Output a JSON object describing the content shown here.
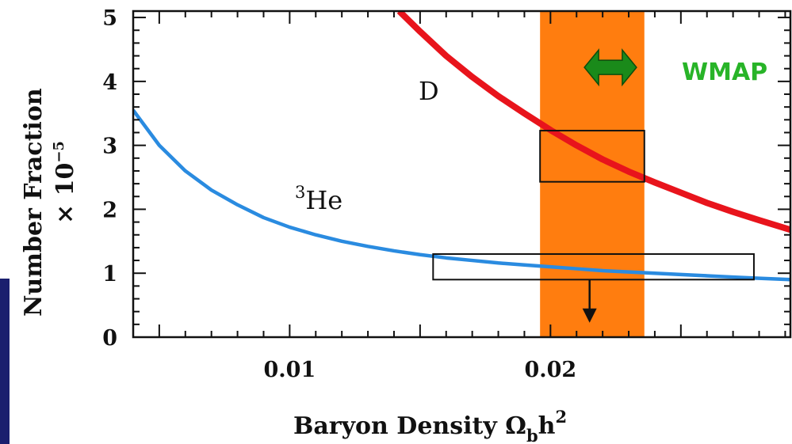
{
  "chart_data": {
    "type": "line",
    "xlabel_main": "Baryon Density Ω",
    "xlabel_sub": "b",
    "xlabel_tail": "h",
    "xlabel_sup": "2",
    "ylabel_main": "Number Fraction",
    "ylabel_factor": "× 10",
    "ylabel_exp": "−5",
    "xlim": [
      0.004,
      0.0292
    ],
    "ylim": [
      0,
      5.1
    ],
    "x_ticks": [
      {
        "value": 0.01,
        "label": "0.01"
      },
      {
        "value": 0.02,
        "label": "0.02"
      }
    ],
    "y_ticks": [
      {
        "value": 0,
        "label": "0"
      },
      {
        "value": 1,
        "label": "1"
      },
      {
        "value": 2,
        "label": "2"
      },
      {
        "value": 3,
        "label": "3"
      },
      {
        "value": 4,
        "label": "4"
      },
      {
        "value": 5,
        "label": "5"
      }
    ],
    "series": [
      {
        "name": "D",
        "color": "#e8141c",
        "x": [
          0.0142,
          0.015,
          0.016,
          0.017,
          0.018,
          0.019,
          0.02,
          0.021,
          0.022,
          0.023,
          0.024,
          0.025,
          0.026,
          0.027,
          0.028,
          0.0292
        ],
        "y": [
          5.1,
          4.78,
          4.4,
          4.07,
          3.77,
          3.5,
          3.24,
          3.0,
          2.78,
          2.59,
          2.42,
          2.26,
          2.1,
          1.96,
          1.83,
          1.68
        ]
      },
      {
        "name": "³He",
        "sup": "3",
        "label": "He",
        "color": "#2a8be0",
        "x": [
          0.004,
          0.005,
          0.006,
          0.007,
          0.008,
          0.009,
          0.01,
          0.011,
          0.012,
          0.013,
          0.014,
          0.015,
          0.016,
          0.017,
          0.018,
          0.019,
          0.02,
          0.021,
          0.022,
          0.023,
          0.024,
          0.025,
          0.026,
          0.027,
          0.028,
          0.0292
        ],
        "y": [
          3.55,
          3.0,
          2.6,
          2.3,
          2.07,
          1.87,
          1.72,
          1.6,
          1.5,
          1.42,
          1.35,
          1.29,
          1.24,
          1.2,
          1.16,
          1.13,
          1.1,
          1.07,
          1.04,
          1.02,
          1.0,
          0.98,
          0.96,
          0.94,
          0.92,
          0.9
        ]
      }
    ],
    "bands": [
      {
        "name": "WMAP",
        "x": [
          0.0196,
          0.0236
        ],
        "color": "#ff7d0f"
      }
    ],
    "boxes": [
      {
        "target": "D",
        "x": [
          0.0196,
          0.0236
        ],
        "y": [
          2.43,
          3.23
        ]
      },
      {
        "target": "³He",
        "x": [
          0.0155,
          0.0278
        ],
        "y": [
          0.9,
          1.3
        ]
      }
    ],
    "upper_limit_arrow": {
      "x": 0.0215,
      "y_from": 0.9,
      "y_to": 0.25
    },
    "wmap_arrow": {
      "x": [
        0.0213,
        0.0233
      ],
      "y": 4.22,
      "color": "#1a8a1a"
    },
    "wmap_label": "WMAP",
    "wmap_label_color": "#28b428"
  }
}
